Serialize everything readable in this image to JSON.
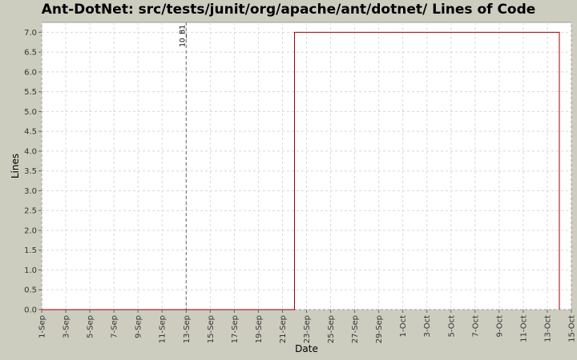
{
  "chart_data": {
    "type": "line",
    "title": "Ant-DotNet: src/tests/junit/org/apache/ant/dotnet/ Lines of Code",
    "xlabel": "Date",
    "ylabel": "Lines",
    "x_ticks": [
      "1-Sep",
      "3-Sep",
      "5-Sep",
      "7-Sep",
      "9-Sep",
      "11-Sep",
      "13-Sep",
      "15-Sep",
      "17-Sep",
      "19-Sep",
      "21-Sep",
      "23-Sep",
      "25-Sep",
      "27-Sep",
      "29-Sep",
      "1-Oct",
      "3-Oct",
      "5-Oct",
      "7-Oct",
      "9-Oct",
      "11-Oct",
      "13-Oct",
      "15-Oct"
    ],
    "xlim_days": [
      0,
      44
    ],
    "ylim": [
      0,
      7.25
    ],
    "y_ticks": [
      "0.0",
      "0.5",
      "1.0",
      "1.5",
      "2.0",
      "2.5",
      "3.0",
      "3.5",
      "4.0",
      "4.5",
      "5.0",
      "5.5",
      "6.0",
      "6.5",
      "7.0"
    ],
    "grid": true,
    "series": [
      {
        "x": [
          "1-Sep",
          "22-Sep",
          "22-Sep",
          "14-Oct",
          "14-Oct"
        ],
        "values": [
          0,
          0,
          7,
          7,
          0
        ],
        "color": "#990000"
      }
    ],
    "markers": [
      {
        "x": "13-Sep",
        "label": "10_B1"
      }
    ],
    "colors": {
      "background": "#cdcdbf",
      "plot_bg": "#ffffff",
      "grid": "#d8d8d8",
      "marker": "#666666"
    }
  }
}
